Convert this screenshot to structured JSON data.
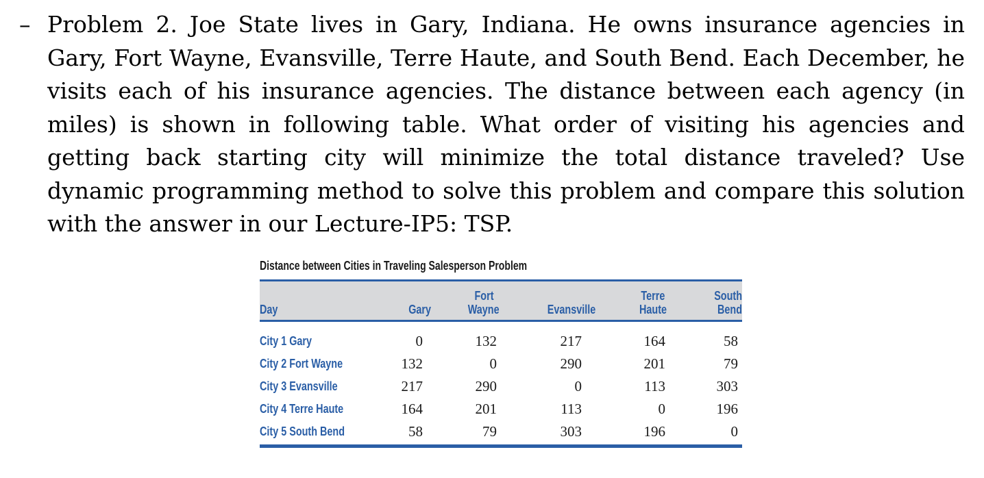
{
  "problem": {
    "dash": "–",
    "text": "Problem 2. Joe State lives in Gary, Indiana. He owns insurance agencies in Gary, Fort Wayne, Evansville, Terre Haute, and South Bend. Each December, he visits each of his insurance agencies. The distance between each agency (in miles) is shown in following table. What order of visiting his agencies and getting back starting city will minimize the total distance traveled? Use dynamic programming method to solve this problem and compare this solution with the answer in our Lecture-IP5: TSP."
  },
  "table": {
    "title": "Distance between Cities in Traveling Salesperson Problem",
    "headers": {
      "day": "Day",
      "gary": "Gary",
      "fort_wayne_1": "Fort",
      "fort_wayne_2": "Wayne",
      "evansville": "Evansville",
      "terre_haute_1": "Terre",
      "terre_haute_2": "Haute",
      "south_bend_1": "South",
      "south_bend_2": "Bend"
    },
    "rows": [
      {
        "label": "City 1 Gary",
        "values": [
          "0",
          "132",
          "217",
          "164",
          "58"
        ]
      },
      {
        "label": "City 2 Fort Wayne",
        "values": [
          "132",
          "0",
          "290",
          "201",
          "79"
        ]
      },
      {
        "label": "City 3 Evansville",
        "values": [
          "217",
          "290",
          "0",
          "113",
          "303"
        ]
      },
      {
        "label": "City 4 Terre Haute",
        "values": [
          "164",
          "201",
          "113",
          "0",
          "196"
        ]
      },
      {
        "label": "City 5 South Bend",
        "values": [
          "58",
          "79",
          "303",
          "196",
          "0"
        ]
      }
    ]
  },
  "colors": {
    "accent": "#2a5ea6",
    "header_bg": "#d8d9db"
  }
}
